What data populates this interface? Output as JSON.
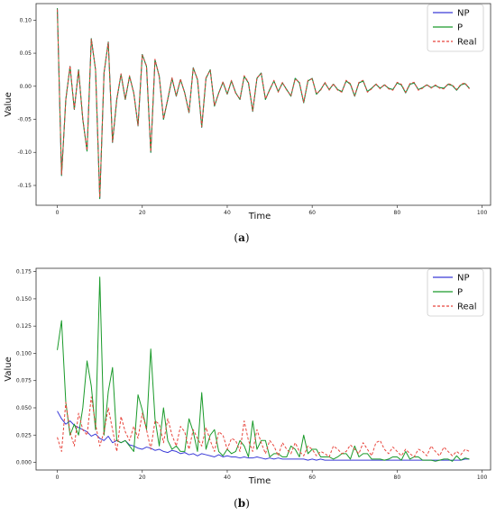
{
  "chart_data": [
    {
      "type": "line",
      "panel_label": "a",
      "xlabel": "Time",
      "ylabel": "Value",
      "xlim": [
        -5,
        102
      ],
      "ylim": [
        -0.18,
        0.125
      ],
      "xticks": [
        0,
        20,
        40,
        60,
        80,
        100
      ],
      "xtick_labels": [
        "0",
        "20",
        "40",
        "60",
        "80",
        "100"
      ],
      "yticks": [
        -0.15,
        -0.1,
        -0.05,
        0.0,
        0.05,
        0.1
      ],
      "ytick_labels": [
        "-0.15",
        "-0.10",
        "-0.05",
        "0.00",
        "0.05",
        "0.10"
      ],
      "legend_position": "top-right",
      "series": [
        {
          "name": "NP",
          "color": "#3b3bd8",
          "style": "solid",
          "y": [
            0.118,
            -0.135,
            -0.02,
            0.03,
            -0.035,
            0.025,
            -0.05,
            -0.098,
            0.072,
            0.025,
            -0.17,
            0.02,
            0.067,
            -0.085,
            -0.02,
            0.018,
            -0.02,
            0.015,
            -0.01,
            -0.06,
            0.048,
            0.03,
            -0.1,
            0.04,
            0.015,
            -0.05,
            -0.02,
            0.012,
            -0.015,
            0.01,
            -0.01,
            -0.04,
            0.028,
            0.01,
            -0.062,
            0.012,
            0.025,
            -0.03,
            -0.01,
            0.006,
            -0.012,
            0.008,
            -0.01,
            -0.02,
            0.015,
            0.005,
            -0.038,
            0.012,
            0.02,
            -0.02,
            -0.005,
            0.008,
            -0.008,
            0.005,
            -0.005,
            -0.015,
            0.012,
            0.005,
            -0.025,
            0.008,
            0.012,
            -0.012,
            -0.005,
            0.005,
            -0.005,
            0.003,
            -0.005,
            -0.008,
            0.008,
            0.003,
            -0.015,
            0.005,
            0.008,
            -0.008,
            -0.003,
            0.003,
            -0.003,
            0.002,
            -0.003,
            -0.005,
            0.005,
            0.002,
            -0.01,
            0.003,
            0.005,
            -0.005,
            -0.002,
            0.002,
            -0.002,
            0.001,
            -0.002,
            -0.003,
            0.003,
            0.001,
            -0.006,
            0.002,
            0.004,
            -0.003
          ]
        },
        {
          "name": "P",
          "color": "#1a9a2a",
          "style": "solid",
          "y": [
            0.118,
            -0.135,
            -0.02,
            0.03,
            -0.035,
            0.025,
            -0.05,
            -0.098,
            0.072,
            0.025,
            -0.17,
            0.02,
            0.067,
            -0.085,
            -0.02,
            0.018,
            -0.02,
            0.015,
            -0.01,
            -0.06,
            0.048,
            0.03,
            -0.1,
            0.04,
            0.015,
            -0.05,
            -0.02,
            0.012,
            -0.015,
            0.01,
            -0.01,
            -0.04,
            0.028,
            0.01,
            -0.062,
            0.012,
            0.025,
            -0.03,
            -0.01,
            0.006,
            -0.012,
            0.008,
            -0.01,
            -0.02,
            0.015,
            0.005,
            -0.038,
            0.012,
            0.02,
            -0.02,
            -0.005,
            0.008,
            -0.008,
            0.005,
            -0.005,
            -0.015,
            0.012,
            0.005,
            -0.025,
            0.008,
            0.012,
            -0.012,
            -0.005,
            0.005,
            -0.005,
            0.003,
            -0.005,
            -0.008,
            0.008,
            0.003,
            -0.015,
            0.005,
            0.008,
            -0.008,
            -0.003,
            0.003,
            -0.003,
            0.002,
            -0.003,
            -0.005,
            0.005,
            0.002,
            -0.01,
            0.003,
            0.005,
            -0.005,
            -0.002,
            0.002,
            -0.002,
            0.001,
            -0.002,
            -0.003,
            0.003,
            0.001,
            -0.006,
            0.002,
            0.004,
            -0.003
          ]
        },
        {
          "name": "Real",
          "color": "#e8453c",
          "style": "dashed",
          "y": [
            0.116,
            -0.133,
            -0.021,
            0.031,
            -0.034,
            0.024,
            -0.049,
            -0.097,
            0.071,
            0.026,
            -0.168,
            0.021,
            0.066,
            -0.084,
            -0.019,
            0.019,
            -0.019,
            0.016,
            -0.011,
            -0.059,
            0.047,
            0.031,
            -0.099,
            0.041,
            0.014,
            -0.049,
            -0.019,
            0.013,
            -0.014,
            0.011,
            -0.011,
            -0.039,
            0.027,
            0.011,
            -0.061,
            0.013,
            0.024,
            -0.029,
            -0.011,
            0.007,
            -0.011,
            0.009,
            -0.011,
            -0.019,
            0.016,
            0.006,
            -0.037,
            0.013,
            0.019,
            -0.019,
            -0.006,
            0.009,
            -0.009,
            0.006,
            -0.006,
            -0.014,
            0.011,
            0.006,
            -0.024,
            0.009,
            0.011,
            -0.011,
            -0.006,
            0.006,
            -0.006,
            0.004,
            -0.006,
            -0.009,
            0.009,
            0.004,
            -0.014,
            0.006,
            0.009,
            -0.009,
            -0.004,
            0.004,
            -0.004,
            0.003,
            -0.004,
            -0.006,
            0.006,
            0.003,
            -0.009,
            0.004,
            0.006,
            -0.006,
            -0.003,
            0.003,
            -0.003,
            0.002,
            -0.003,
            -0.004,
            0.004,
            0.002,
            -0.005,
            0.003,
            0.005,
            -0.004
          ]
        }
      ]
    },
    {
      "type": "line",
      "panel_label": "b",
      "xlabel": "Time",
      "ylabel": "Value",
      "xlim": [
        -5,
        102
      ],
      "ylim": [
        -0.007,
        0.178
      ],
      "xticks": [
        0,
        20,
        40,
        60,
        80,
        100
      ],
      "xtick_labels": [
        "0",
        "20",
        "40",
        "60",
        "80",
        "100"
      ],
      "yticks": [
        0,
        0.025,
        0.05,
        0.075,
        0.1,
        0.125,
        0.15,
        0.175
      ],
      "ytick_labels": [
        "0.000",
        "0.025",
        "0.050",
        "0.075",
        "0.100",
        "0.125",
        "0.150",
        "0.175"
      ],
      "legend_position": "top-right",
      "series": [
        {
          "name": "NP",
          "color": "#3b3bd8",
          "style": "solid",
          "y": [
            0.047,
            0.04,
            0.035,
            0.038,
            0.034,
            0.032,
            0.03,
            0.028,
            0.024,
            0.026,
            0.022,
            0.02,
            0.024,
            0.018,
            0.02,
            0.018,
            0.02,
            0.016,
            0.015,
            0.013,
            0.012,
            0.014,
            0.013,
            0.011,
            0.012,
            0.01,
            0.009,
            0.011,
            0.01,
            0.008,
            0.009,
            0.007,
            0.008,
            0.006,
            0.008,
            0.007,
            0.006,
            0.005,
            0.007,
            0.005,
            0.006,
            0.005,
            0.005,
            0.004,
            0.005,
            0.004,
            0.004,
            0.005,
            0.004,
            0.003,
            0.004,
            0.003,
            0.004,
            0.003,
            0.003,
            0.003,
            0.003,
            0.003,
            0.003,
            0.002,
            0.003,
            0.002,
            0.003,
            0.002,
            0.002,
            0.002,
            0.002,
            0.002,
            0.002,
            0.002,
            0.002,
            0.002,
            0.002,
            0.002,
            0.002,
            0.002,
            0.002,
            0.002,
            0.002,
            0.002,
            0.002,
            0.002,
            0.002,
            0.002,
            0.002,
            0.002,
            0.002,
            0.002,
            0.002,
            0.002,
            0.002,
            0.002,
            0.002,
            0.002,
            0.002,
            0.002,
            0.003,
            0.003
          ]
        },
        {
          "name": "P",
          "color": "#1a9a2a",
          "style": "solid",
          "y": [
            0.103,
            0.13,
            0.055,
            0.025,
            0.035,
            0.025,
            0.05,
            0.093,
            0.07,
            0.03,
            0.17,
            0.025,
            0.065,
            0.087,
            0.02,
            0.018,
            0.02,
            0.015,
            0.01,
            0.062,
            0.048,
            0.03,
            0.104,
            0.04,
            0.015,
            0.05,
            0.02,
            0.012,
            0.015,
            0.01,
            0.01,
            0.04,
            0.028,
            0.01,
            0.064,
            0.012,
            0.025,
            0.03,
            0.01,
            0.006,
            0.012,
            0.008,
            0.01,
            0.02,
            0.015,
            0.005,
            0.038,
            0.012,
            0.02,
            0.02,
            0.005,
            0.008,
            0.008,
            0.005,
            0.005,
            0.015,
            0.012,
            0.005,
            0.025,
            0.008,
            0.012,
            0.012,
            0.005,
            0.005,
            0.005,
            0.003,
            0.005,
            0.008,
            0.008,
            0.003,
            0.015,
            0.005,
            0.008,
            0.008,
            0.003,
            0.003,
            0.003,
            0.002,
            0.003,
            0.005,
            0.005,
            0.002,
            0.01,
            0.003,
            0.005,
            0.005,
            0.002,
            0.002,
            0.002,
            0.001,
            0.002,
            0.003,
            0.003,
            0.001,
            0.006,
            0.002,
            0.004,
            0.003
          ]
        },
        {
          "name": "Real",
          "color": "#e8453c",
          "style": "dashed",
          "y": [
            0.023,
            0.01,
            0.055,
            0.028,
            0.015,
            0.045,
            0.03,
            0.025,
            0.06,
            0.035,
            0.015,
            0.028,
            0.05,
            0.03,
            0.01,
            0.042,
            0.028,
            0.02,
            0.033,
            0.022,
            0.045,
            0.03,
            0.012,
            0.038,
            0.035,
            0.018,
            0.04,
            0.025,
            0.015,
            0.033,
            0.028,
            0.012,
            0.03,
            0.022,
            0.015,
            0.032,
            0.02,
            0.01,
            0.028,
            0.025,
            0.012,
            0.022,
            0.02,
            0.01,
            0.038,
            0.02,
            0.01,
            0.03,
            0.018,
            0.008,
            0.02,
            0.015,
            0.006,
            0.018,
            0.012,
            0.008,
            0.018,
            0.01,
            0.006,
            0.015,
            0.012,
            0.006,
            0.01,
            0.008,
            0.005,
            0.015,
            0.012,
            0.008,
            0.01,
            0.016,
            0.012,
            0.008,
            0.018,
            0.012,
            0.006,
            0.018,
            0.02,
            0.012,
            0.008,
            0.014,
            0.01,
            0.006,
            0.012,
            0.008,
            0.005,
            0.012,
            0.01,
            0.006,
            0.015,
            0.01,
            0.006,
            0.014,
            0.01,
            0.006,
            0.01,
            0.007,
            0.012,
            0.01
          ]
        }
      ]
    }
  ]
}
